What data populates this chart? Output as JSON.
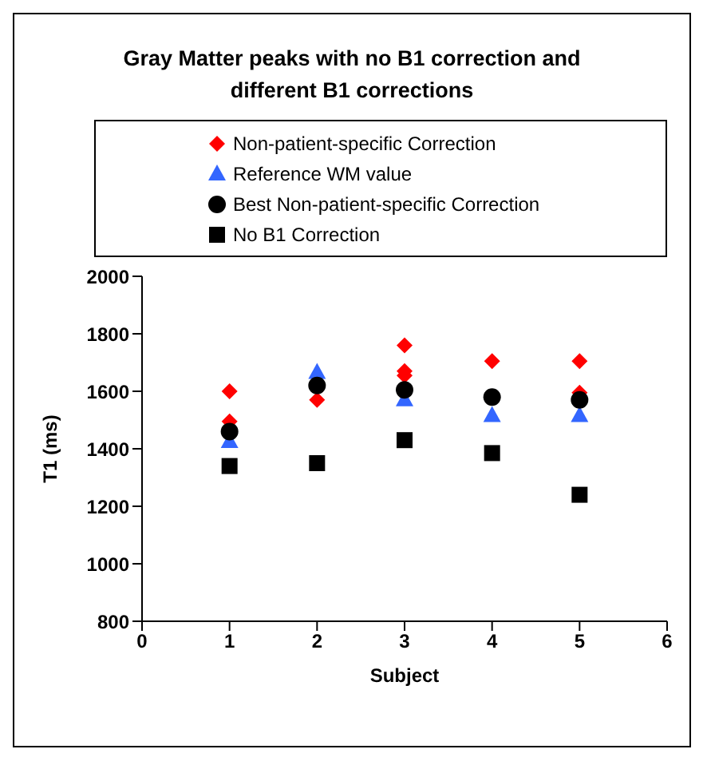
{
  "chart_data": {
    "type": "scatter",
    "title": "Gray Matter peaks with no B1 correction and different B1 corrections",
    "xlabel": "Subject",
    "ylabel": "T1 (ms)",
    "xlim": [
      0,
      6
    ],
    "xticks": [
      0,
      1,
      2,
      3,
      4,
      5,
      6
    ],
    "ylim": [
      800,
      2000
    ],
    "yticks": [
      800,
      1000,
      1200,
      1400,
      1600,
      1800,
      2000
    ],
    "grid": false,
    "legend": "top",
    "series": [
      {
        "name": "Non-patient-specific Correction",
        "color": "#ff0000",
        "marker": "diamond",
        "x": [
          1,
          1,
          2,
          3,
          3,
          3,
          4,
          5,
          5
        ],
        "values": [
          1600,
          1495,
          1570,
          1760,
          1670,
          1655,
          1705,
          1705,
          1595
        ]
      },
      {
        "name": "Reference WM value",
        "color": "#3366ff",
        "marker": "triangle",
        "x": [
          1,
          2,
          3,
          4,
          5
        ],
        "values": [
          1425,
          1665,
          1570,
          1515,
          1515
        ]
      },
      {
        "name": "Best Non-patient-specific Correction",
        "color": "#000000",
        "marker": "circle",
        "x": [
          1,
          2,
          3,
          4,
          5
        ],
        "values": [
          1460,
          1620,
          1605,
          1580,
          1570
        ]
      },
      {
        "name": "No B1 Correction",
        "color": "#000000",
        "marker": "square",
        "x": [
          1,
          2,
          3,
          4,
          5
        ],
        "values": [
          1340,
          1350,
          1430,
          1385,
          1240
        ]
      }
    ]
  }
}
